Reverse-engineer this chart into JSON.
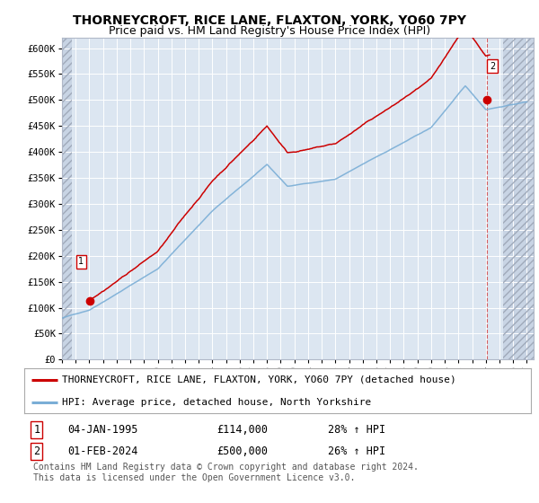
{
  "title": "THORNEYCROFT, RICE LANE, FLAXTON, YORK, YO60 7PY",
  "subtitle": "Price paid vs. HM Land Registry's House Price Index (HPI)",
  "ylim": [
    0,
    620000
  ],
  "yticks": [
    0,
    50000,
    100000,
    150000,
    200000,
    250000,
    300000,
    350000,
    400000,
    450000,
    500000,
    550000,
    600000
  ],
  "ytick_labels": [
    "£0",
    "£50K",
    "£100K",
    "£150K",
    "£200K",
    "£250K",
    "£300K",
    "£350K",
    "£400K",
    "£450K",
    "£500K",
    "£550K",
    "£600K"
  ],
  "xlim_start": 1993.0,
  "xlim_end": 2027.5,
  "hatch_left_end": 1993.75,
  "hatch_right_start": 2025.25,
  "plot_bg_color": "#dce6f1",
  "fig_bg_color": "#ffffff",
  "grid_color": "#ffffff",
  "hatch_bg_color": "#c8d4e4",
  "point1_x": 1995.01,
  "point1_y": 114000,
  "point2_x": 2024.08,
  "point2_y": 500000,
  "sale_color": "#cc0000",
  "hpi_color": "#7aaed6",
  "legend_sale_label": "THORNEYCROFT, RICE LANE, FLAXTON, YORK, YO60 7PY (detached house)",
  "legend_hpi_label": "HPI: Average price, detached house, North Yorkshire",
  "ann1_date": "04-JAN-1995",
  "ann1_price": "£114,000",
  "ann1_hpi": "28% ↑ HPI",
  "ann2_date": "01-FEB-2024",
  "ann2_price": "£500,000",
  "ann2_hpi": "26% ↑ HPI",
  "footer": "Contains HM Land Registry data © Crown copyright and database right 2024.\nThis data is licensed under the Open Government Licence v3.0.",
  "title_fontsize": 10,
  "subtitle_fontsize": 9,
  "tick_fontsize": 7.5,
  "legend_fontsize": 8,
  "ann_fontsize": 8.5
}
